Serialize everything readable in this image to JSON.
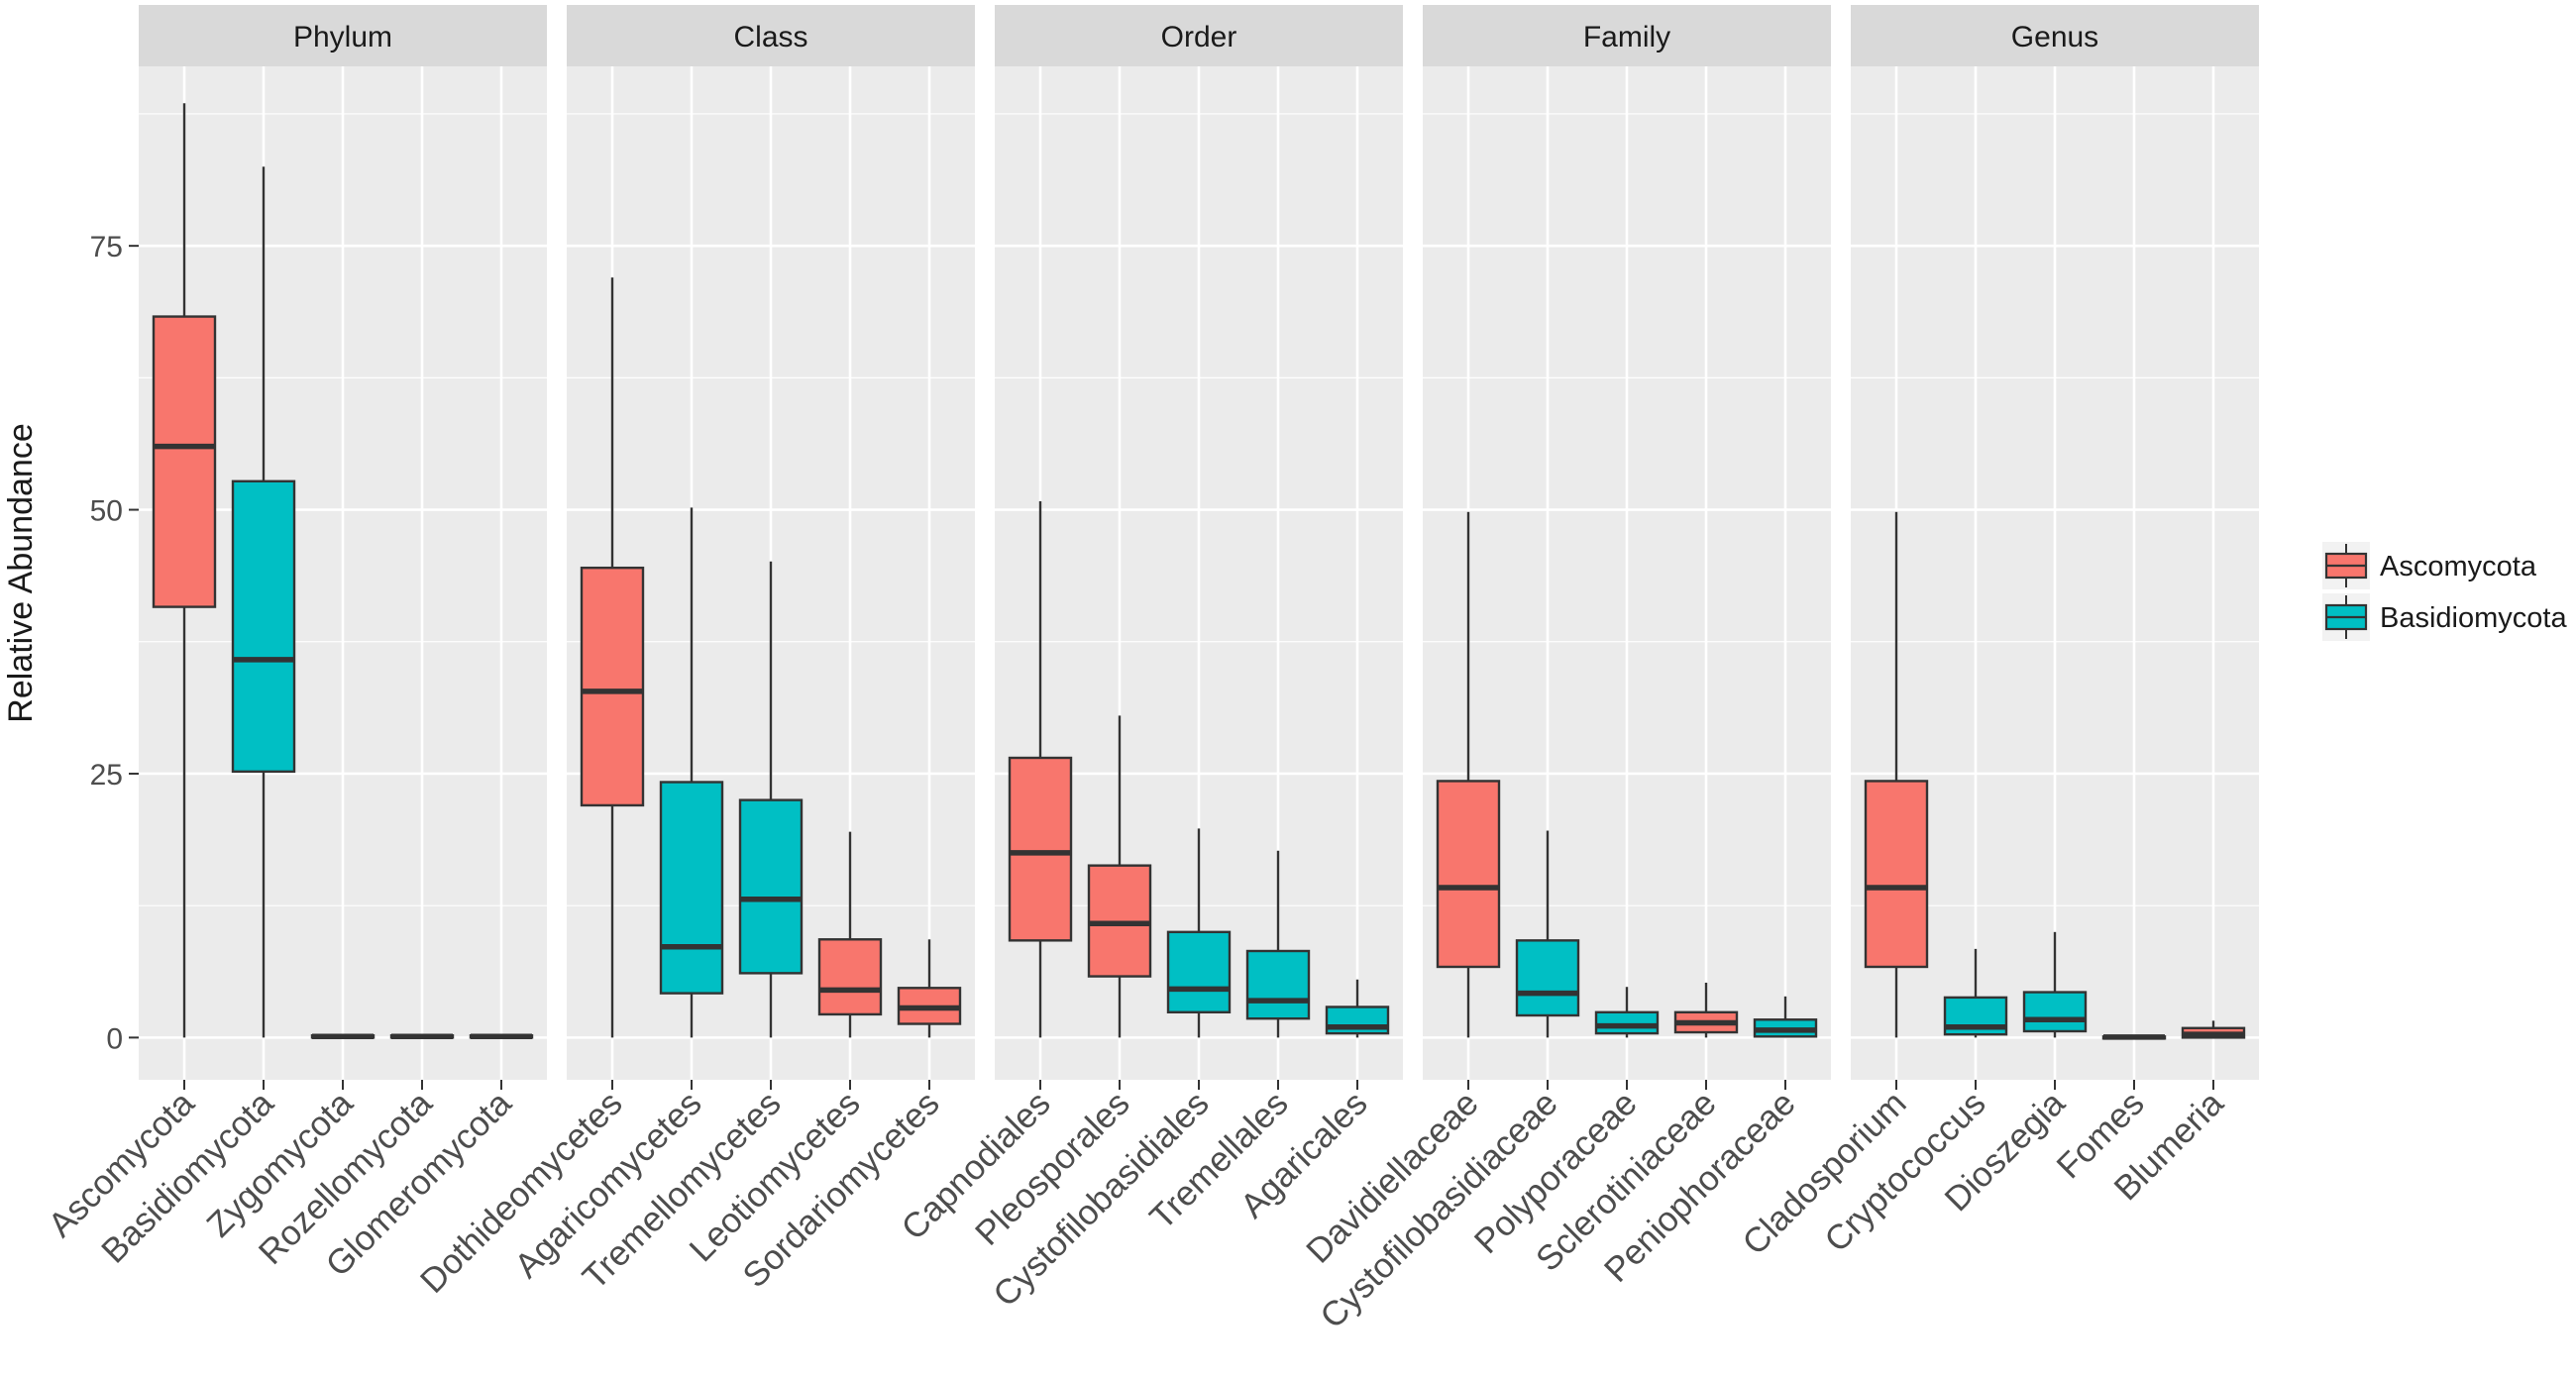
{
  "chart_data": {
    "type": "box",
    "ylabel": "Relative Abundance",
    "ylim": [
      -4,
      92
    ],
    "yticks": [
      0,
      25,
      50,
      75
    ],
    "grid": true,
    "colors": {
      "Ascomycota": "#F8766D",
      "Basidiomycota": "#00BFC4"
    },
    "legend": {
      "position": "right",
      "entries": [
        {
          "label": "Ascomycota",
          "color": "#F8766D"
        },
        {
          "label": "Basidiomycota",
          "color": "#00BFC4"
        }
      ]
    },
    "panels": [
      {
        "title": "Phylum",
        "categories": [
          {
            "label": "Ascomycota",
            "group": "Ascomycota",
            "min": 0,
            "q1": 40.8,
            "median": 56,
            "q3": 68.3,
            "max": 88.5
          },
          {
            "label": "Basidiomycota",
            "group": "Basidiomycota",
            "min": 0,
            "q1": 25.2,
            "median": 35.8,
            "q3": 52.7,
            "max": 82.5
          },
          {
            "label": "Zygomycota",
            "group": "Ascomycota",
            "min": 0,
            "q1": 0,
            "median": 0.1,
            "q3": 0.2,
            "max": 0.3
          },
          {
            "label": "Rozellomycota",
            "group": "Ascomycota",
            "min": 0,
            "q1": 0,
            "median": 0.1,
            "q3": 0.2,
            "max": 0.3
          },
          {
            "label": "Glomeromycota",
            "group": "Ascomycota",
            "min": 0,
            "q1": 0,
            "median": 0.1,
            "q3": 0.2,
            "max": 0.3
          }
        ]
      },
      {
        "title": "Class",
        "categories": [
          {
            "label": "Dothideomycetes",
            "group": "Ascomycota",
            "min": 0,
            "q1": 22,
            "median": 32.8,
            "q3": 44.5,
            "max": 72
          },
          {
            "label": "Agaricomycetes",
            "group": "Basidiomycota",
            "min": 0,
            "q1": 4.2,
            "median": 8.6,
            "q3": 24.2,
            "max": 50.2
          },
          {
            "label": "Tremellomycetes",
            "group": "Basidiomycota",
            "min": 0,
            "q1": 6.1,
            "median": 13.1,
            "q3": 22.5,
            "max": 45.1
          },
          {
            "label": "Leotiomycetes",
            "group": "Ascomycota",
            "min": 0,
            "q1": 2.2,
            "median": 4.5,
            "q3": 9.3,
            "max": 19.5
          },
          {
            "label": "Sordariomycetes",
            "group": "Ascomycota",
            "min": 0,
            "q1": 1.3,
            "median": 2.8,
            "q3": 4.7,
            "max": 9.3
          }
        ]
      },
      {
        "title": "Order",
        "categories": [
          {
            "label": "Capnodiales",
            "group": "Ascomycota",
            "min": 0,
            "q1": 9.2,
            "median": 17.5,
            "q3": 26.5,
            "max": 50.8
          },
          {
            "label": "Pleosporales",
            "group": "Ascomycota",
            "min": 0,
            "q1": 5.8,
            "median": 10.8,
            "q3": 16.3,
            "max": 30.5
          },
          {
            "label": "Cystofilobasidiales",
            "group": "Basidiomycota",
            "min": 0,
            "q1": 2.4,
            "median": 4.6,
            "q3": 10,
            "max": 19.8
          },
          {
            "label": "Tremellales",
            "group": "Basidiomycota",
            "min": 0,
            "q1": 1.8,
            "median": 3.5,
            "q3": 8.2,
            "max": 17.7
          },
          {
            "label": "Agaricales",
            "group": "Basidiomycota",
            "min": 0,
            "q1": 0.4,
            "median": 1,
            "q3": 2.9,
            "max": 5.5
          }
        ]
      },
      {
        "title": "Family",
        "categories": [
          {
            "label": "Davidiellaceae",
            "group": "Ascomycota",
            "min": 0,
            "q1": 6.7,
            "median": 14.2,
            "q3": 24.3,
            "max": 49.8
          },
          {
            "label": "Cystofilobasidiaceae",
            "group": "Basidiomycota",
            "min": 0,
            "q1": 2.1,
            "median": 4.2,
            "q3": 9.2,
            "max": 19.6
          },
          {
            "label": "Polyporaceae",
            "group": "Basidiomycota",
            "min": 0,
            "q1": 0.4,
            "median": 1.1,
            "q3": 2.4,
            "max": 4.8
          },
          {
            "label": "Sclerotiniaceae",
            "group": "Ascomycota",
            "min": 0,
            "q1": 0.5,
            "median": 1.4,
            "q3": 2.4,
            "max": 5.2
          },
          {
            "label": "Peniophoraceae",
            "group": "Basidiomycota",
            "min": 0,
            "q1": 0.1,
            "median": 0.7,
            "q3": 1.7,
            "max": 3.9
          }
        ]
      },
      {
        "title": "Genus",
        "categories": [
          {
            "label": "Cladosporium",
            "group": "Ascomycota",
            "min": 0,
            "q1": 6.7,
            "median": 14.2,
            "q3": 24.3,
            "max": 49.8
          },
          {
            "label": "Cryptococcus",
            "group": "Basidiomycota",
            "min": 0,
            "q1": 0.3,
            "median": 1,
            "q3": 3.8,
            "max": 8.4
          },
          {
            "label": "Dioszegia",
            "group": "Basidiomycota",
            "min": 0,
            "q1": 0.6,
            "median": 1.7,
            "q3": 4.3,
            "max": 10
          },
          {
            "label": "Fomes",
            "group": "Ascomycota",
            "min": 0,
            "q1": 0,
            "median": 0.05,
            "q3": 0.1,
            "max": 0.2
          },
          {
            "label": "Blumeria",
            "group": "Ascomycota",
            "min": 0,
            "q1": 0,
            "median": 0.3,
            "q3": 0.9,
            "max": 1.6
          }
        ]
      }
    ]
  }
}
